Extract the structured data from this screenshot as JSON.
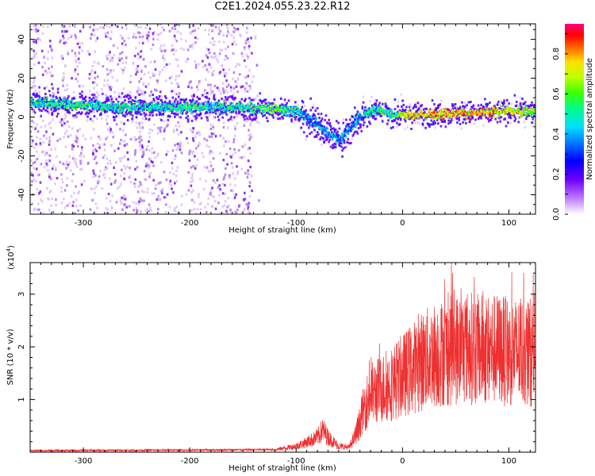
{
  "title": "C2E1.2024.055.23.22.R12",
  "colors": {
    "series": "#ee3030",
    "spectrum_low": "#8a2be2",
    "spectrum_mid": "#00dcff",
    "spectrum_high": "#ff0000"
  },
  "chart_data": [
    {
      "type": "heatmap",
      "title": "",
      "xlabel": "Height of straight line (km)",
      "ylabel": "Frequency (Hz)",
      "xlim": [
        -350,
        125
      ],
      "ylim": [
        -50,
        48
      ],
      "xticks": [
        "-300",
        "-200",
        "-100",
        "0",
        "100"
      ],
      "xtick_values": [
        -300,
        -200,
        -100,
        0,
        100
      ],
      "yticks": [
        "-40",
        "-20",
        "0",
        "20",
        "40"
      ],
      "ytick_values": [
        -40,
        -20,
        0,
        20,
        40
      ],
      "colorbar": {
        "label": "Normalized spectral amplitude",
        "ticks": [
          "0.0",
          "0.2",
          "0.4",
          "0.6",
          "0.8"
        ],
        "tick_values": [
          0.0,
          0.2,
          0.4,
          0.6,
          0.8
        ],
        "range": [
          0,
          0.95
        ]
      },
      "ridge": {
        "x": [
          -350,
          -300,
          -250,
          -200,
          -150,
          -120,
          -100,
          -90,
          -80,
          -70,
          -60,
          -50,
          -40,
          -30,
          -20,
          -10,
          0,
          25,
          50,
          75,
          100,
          125
        ],
        "y": [
          8,
          6,
          5,
          5,
          5,
          4,
          3,
          0,
          -4,
          -8,
          -12,
          -6,
          0,
          3,
          4,
          1,
          1,
          1.5,
          2,
          2,
          3,
          3
        ],
        "amplitude": [
          0.45,
          0.5,
          0.45,
          0.5,
          0.45,
          0.6,
          0.45,
          0.35,
          0.35,
          0.4,
          0.35,
          0.35,
          0.4,
          0.45,
          0.55,
          0.5,
          0.7,
          0.75,
          0.8,
          0.75,
          0.7,
          0.65
        ]
      },
      "noise_region_xlim": [
        -350,
        -135
      ]
    },
    {
      "type": "line",
      "title": "",
      "xlabel": "Height of straight line (km)",
      "ylabel": "SNR (10 * v/v)",
      "y_multiplier": "(x10",
      "y_multiplier_exponent": "4",
      "y_multiplier_close": ")",
      "xlim": [
        -350,
        125
      ],
      "ylim": [
        0,
        3.6
      ],
      "xticks": [
        "-300",
        "-200",
        "-100",
        "0",
        "100"
      ],
      "xtick_values": [
        -300,
        -200,
        -100,
        0,
        100
      ],
      "yticks": [
        "1",
        "2",
        "3"
      ],
      "ytick_values": [
        1,
        2,
        3
      ],
      "series": [
        {
          "envelope_x": [
            -350,
            -200,
            -120,
            -100,
            -90,
            -80,
            -75,
            -70,
            -60,
            -50,
            -45,
            -40,
            -35,
            -30,
            -20,
            -10,
            0,
            10,
            20,
            30,
            40,
            50,
            60,
            70,
            80,
            90,
            100,
            110,
            125
          ],
          "envelope_y": [
            0.03,
            0.04,
            0.05,
            0.12,
            0.2,
            0.3,
            0.45,
            0.3,
            0.12,
            0.1,
            0.3,
            0.6,
            0.9,
            1.1,
            1.2,
            1.3,
            1.45,
            1.6,
            1.75,
            1.85,
            1.9,
            1.95,
            2.0,
            1.95,
            1.95,
            1.95,
            1.9,
            1.9,
            1.9
          ],
          "peak_y": 3.6,
          "peak_x": 46
        }
      ]
    }
  ]
}
